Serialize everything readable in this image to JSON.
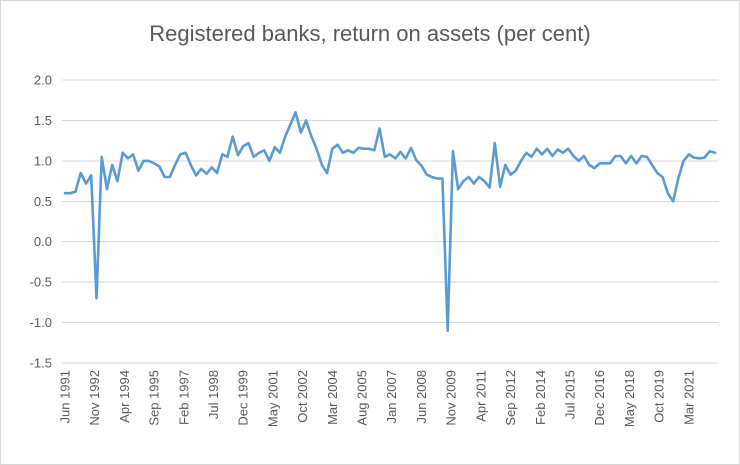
{
  "window": {
    "background": "#ffffff",
    "border_color": "#d7d7d7"
  },
  "chart_data": {
    "type": "line",
    "title": "Registered banks, return on assets (per cent)",
    "title_color": "#595959",
    "axis_label_color": "#595959",
    "gridline_color": "#d9d9d9",
    "grid": "horizontal",
    "legend_position": "none",
    "ylim": [
      -1.5,
      2.0
    ],
    "ytick_step": 0.5,
    "ytick_labels": [
      "2.0",
      "1.5",
      "1.0",
      "0.5",
      "0.0",
      "-0.5",
      "-1.0",
      "-1.5"
    ],
    "xtick_labels": [
      "Jun 1991",
      "Nov 1992",
      "Apr 1994",
      "Sep 1995",
      "Feb 1997",
      "Jul 1998",
      "Dec 1999",
      "May 2001",
      "Oct 2002",
      "Mar 2004",
      "Aug 2005",
      "Jan 2007",
      "Jun 2008",
      "Nov 2009",
      "Apr 2011",
      "Sep 2012",
      "Feb 2014",
      "Jul 2015",
      "Dec 2016",
      "May 2018",
      "Oct 2019",
      "Mar 2021"
    ],
    "xtick_interval_months": 17,
    "x_start": "Jun 1991",
    "x_end": "Jun 2022",
    "x_frequency": "quarterly",
    "series": [
      {
        "name": "Registered banks return on assets",
        "color": "#5B9BD5",
        "line_width": 2.6,
        "values": [
          0.6,
          0.6,
          0.62,
          0.85,
          0.72,
          0.82,
          -0.7,
          1.05,
          0.65,
          0.95,
          0.75,
          1.1,
          1.03,
          1.08,
          0.88,
          1.0,
          1.0,
          0.97,
          0.93,
          0.8,
          0.8,
          0.95,
          1.08,
          1.1,
          0.95,
          0.82,
          0.9,
          0.84,
          0.92,
          0.85,
          1.08,
          1.05,
          1.3,
          1.07,
          1.18,
          1.22,
          1.05,
          1.1,
          1.13,
          1.0,
          1.17,
          1.1,
          1.3,
          1.45,
          1.6,
          1.35,
          1.5,
          1.3,
          1.15,
          0.95,
          0.85,
          1.15,
          1.2,
          1.1,
          1.13,
          1.1,
          1.16,
          1.15,
          1.15,
          1.13,
          1.4,
          1.05,
          1.08,
          1.03,
          1.11,
          1.03,
          1.16,
          1.01,
          0.94,
          0.83,
          0.8,
          0.78,
          0.78,
          -1.1,
          1.12,
          0.65,
          0.75,
          0.8,
          0.72,
          0.8,
          0.75,
          0.67,
          1.22,
          0.68,
          0.95,
          0.83,
          0.88,
          1.0,
          1.1,
          1.05,
          1.15,
          1.08,
          1.15,
          1.06,
          1.14,
          1.1,
          1.15,
          1.06,
          1.0,
          1.06,
          0.95,
          0.91,
          0.97,
          0.97,
          0.97,
          1.06,
          1.06,
          0.97,
          1.06,
          0.97,
          1.06,
          1.05,
          0.95,
          0.85,
          0.8,
          0.6,
          0.5,
          0.78,
          1.0,
          1.08,
          1.04,
          1.03,
          1.04,
          1.12,
          1.1
        ]
      }
    ]
  }
}
